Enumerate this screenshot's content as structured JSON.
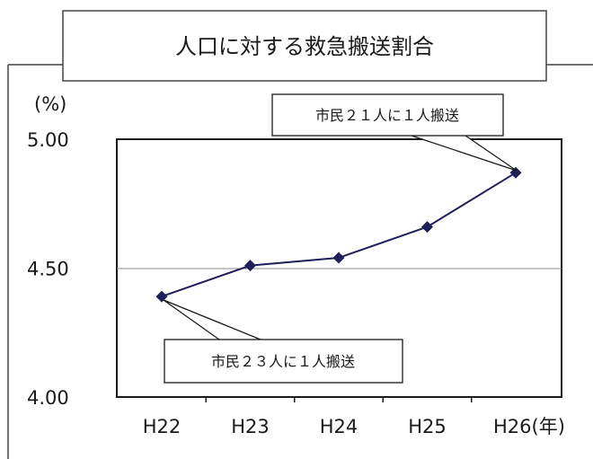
{
  "chart_data": {
    "type": "line",
    "title": "人口に対する救急搬送割合",
    "ylabel": "(%)",
    "xlabel": "",
    "categories": [
      "H22",
      "H23",
      "H24",
      "H25",
      "H26"
    ],
    "x_unit_suffix": "(年)",
    "series": [
      {
        "values": [
          4.39,
          4.51,
          4.54,
          4.66,
          4.87
        ],
        "color": "#1f1f5a"
      }
    ],
    "ylim": [
      4.0,
      5.0
    ],
    "yticks": [
      {
        "value": 5.0,
        "label": "5.00"
      },
      {
        "value": 4.5,
        "label": "4.50"
      },
      {
        "value": 4.0,
        "label": "4.00"
      }
    ],
    "grid": "horizontal at 4.50",
    "annotations": [
      {
        "text": "市民２１人に１人搬送",
        "points_to": "H26"
      },
      {
        "text": "市民２３人に１人搬送",
        "points_to": "H22"
      }
    ]
  }
}
